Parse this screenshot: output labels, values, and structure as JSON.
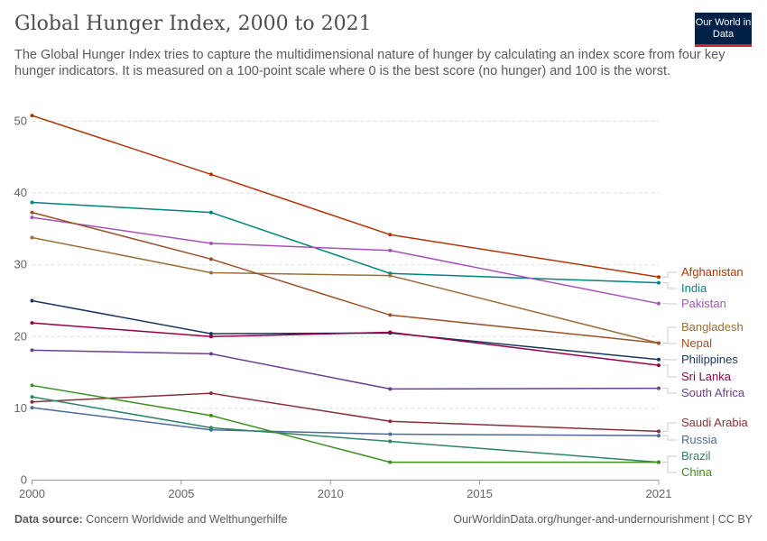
{
  "header": {
    "title": "Global Hunger Index, 2000 to 2021",
    "subtitle": "The Global Hunger Index tries to capture the multidimensional nature of hunger by calculating an index score from four key hunger indicators. It is measured on a 100-point scale where 0 is the best score (no hunger) and 100 is the worst.",
    "logo": "Our World in Data"
  },
  "footer": {
    "source_label": "Data source:",
    "source": "Concern Worldwide and Welthungerhilfe",
    "link": "OurWorldinData.org/hunger-and-undernourishment | CC BY"
  },
  "chart_data": {
    "type": "line",
    "x": [
      2000,
      2006,
      2012,
      2021
    ],
    "xlim": [
      2000,
      2021
    ],
    "ylim": [
      0,
      50
    ],
    "xticks": [
      2000,
      2005,
      2010,
      2015,
      2021
    ],
    "yticks": [
      0,
      10,
      20,
      30,
      40,
      50
    ],
    "grid": "horizontal dashed",
    "legend": "right, inline labels",
    "series": [
      {
        "name": "Afghanistan",
        "color": "#b13507",
        "values": [
          50.8,
          42.6,
          34.2,
          28.3
        ]
      },
      {
        "name": "India",
        "color": "#00847e",
        "values": [
          38.7,
          37.3,
          28.8,
          27.5
        ]
      },
      {
        "name": "Pakistan",
        "color": "#a652ba",
        "values": [
          36.6,
          33.0,
          32.0,
          24.6
        ]
      },
      {
        "name": "Bangladesh",
        "color": "#9a6f3a",
        "values": [
          33.8,
          28.9,
          28.5,
          19.1
        ]
      },
      {
        "name": "Nepal",
        "color": "#9a5129",
        "values": [
          37.3,
          30.8,
          23.0,
          19.1
        ]
      },
      {
        "name": "Philippines",
        "color": "#18375f",
        "values": [
          25.0,
          20.4,
          20.5,
          16.8
        ]
      },
      {
        "name": "Sri Lanka",
        "color": "#970046",
        "values": [
          21.9,
          20.0,
          20.6,
          16.0
        ]
      },
      {
        "name": "South Africa",
        "color": "#6d3e91",
        "values": [
          18.1,
          17.6,
          12.7,
          12.8
        ]
      },
      {
        "name": "Saudi Arabia",
        "color": "#883039",
        "values": [
          10.9,
          12.1,
          8.2,
          6.8
        ]
      },
      {
        "name": "Russia",
        "color": "#4c6a9c",
        "values": [
          10.1,
          7.0,
          6.4,
          6.2
        ]
      },
      {
        "name": "Brazil",
        "color": "#2c8465",
        "values": [
          11.6,
          7.3,
          5.4,
          2.5
        ]
      },
      {
        "name": "China",
        "color": "#3b8e1d",
        "values": [
          13.2,
          9.0,
          2.5,
          2.5
        ]
      }
    ]
  }
}
